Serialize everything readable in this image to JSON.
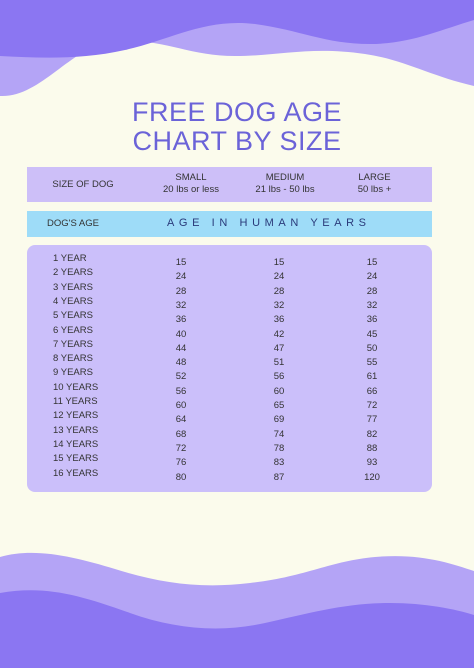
{
  "title": {
    "line1": "FREE DOG AGE",
    "line2": "CHART BY SIZE"
  },
  "colors": {
    "background": "#fbfbec",
    "wave_dark": "#8b76f2",
    "wave_light": "#b4a4f6",
    "title": "#6b63d8",
    "size_header": "#cdbff8",
    "age_header": "#9edcf8",
    "table": "#cbbffa"
  },
  "size_header": {
    "size_label": "SIZE OF DOG",
    "small": {
      "name": "SMALL",
      "range": "20 lbs or less"
    },
    "medium": {
      "name": "MEDIUM",
      "range": "21 lbs - 50 lbs"
    },
    "large": {
      "name": "LARGE",
      "range": "50 lbs +"
    }
  },
  "age_header": {
    "dogs_age": "DOG'S AGE",
    "human_years": "AGE IN HUMAN YEARS"
  },
  "rows": [
    {
      "age": "1 YEAR",
      "small": "15",
      "medium": "15",
      "large": "15"
    },
    {
      "age": "2 YEARS",
      "small": "24",
      "medium": "24",
      "large": "24"
    },
    {
      "age": "3 YEARS",
      "small": "28",
      "medium": "28",
      "large": "28"
    },
    {
      "age": "4 YEARS",
      "small": "32",
      "medium": "32",
      "large": "32"
    },
    {
      "age": "5 YEARS",
      "small": "36",
      "medium": "36",
      "large": "36"
    },
    {
      "age": "6 YEARS",
      "small": "40",
      "medium": "42",
      "large": "45"
    },
    {
      "age": "7 YEARS",
      "small": "44",
      "medium": "47",
      "large": "50"
    },
    {
      "age": "8 YEARS",
      "small": "48",
      "medium": "51",
      "large": "55"
    },
    {
      "age": "9 YEARS",
      "small": "52",
      "medium": "56",
      "large": "61"
    },
    {
      "age": "10 YEARS",
      "small": "56",
      "medium": "60",
      "large": "66"
    },
    {
      "age": "11 YEARS",
      "small": "60",
      "medium": "65",
      "large": "72"
    },
    {
      "age": "12 YEARS",
      "small": "64",
      "medium": "69",
      "large": "77"
    },
    {
      "age": "13 YEARS",
      "small": "68",
      "medium": "74",
      "large": "82"
    },
    {
      "age": "14 YEARS",
      "small": "72",
      "medium": "78",
      "large": "88"
    },
    {
      "age": "15 YEARS",
      "small": "76",
      "medium": "83",
      "large": "93"
    },
    {
      "age": "16 YEARS",
      "small": "80",
      "medium": "87",
      "large": "120"
    }
  ]
}
